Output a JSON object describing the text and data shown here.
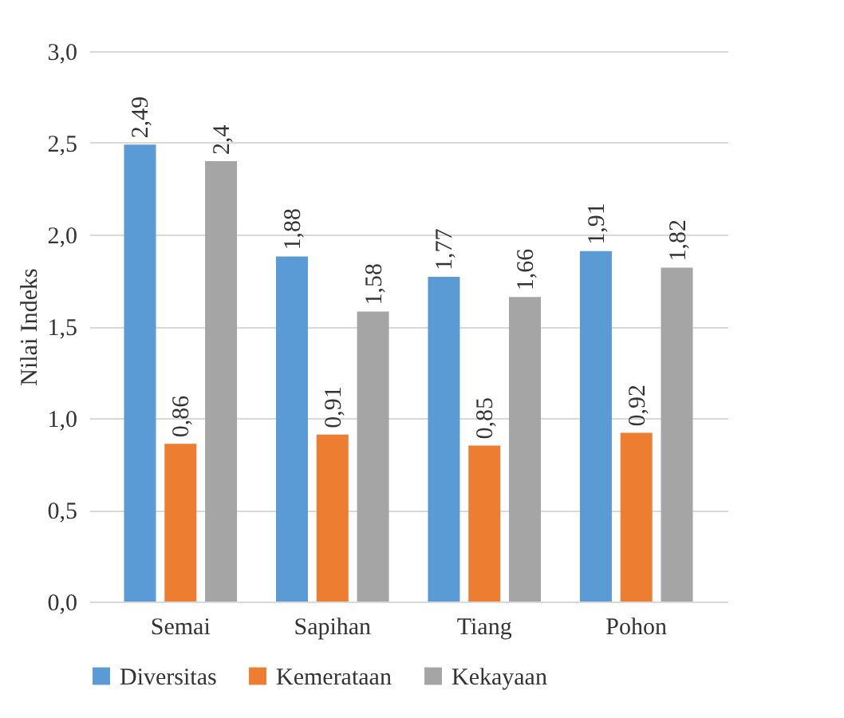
{
  "chart_data": {
    "type": "bar",
    "ylabel": "Nilai Indeks",
    "categories": [
      "Semai",
      "Sapihan",
      "Tiang",
      "Pohon"
    ],
    "series": [
      {
        "name": "Diversitas",
        "color": "#5b9bd5",
        "values": [
          2.49,
          1.88,
          1.77,
          1.91
        ],
        "value_labels": [
          "2,49",
          "1,88",
          "1,77",
          "1,91"
        ]
      },
      {
        "name": "Kemerataan",
        "color": "#ed7d31",
        "values": [
          0.86,
          0.91,
          0.85,
          0.92
        ],
        "value_labels": [
          "0,86",
          "0,91",
          "0,85",
          "0,92"
        ]
      },
      {
        "name": "Kekayaan",
        "color": "#a5a5a5",
        "values": [
          2.4,
          1.58,
          1.66,
          1.82
        ],
        "value_labels": [
          "2,4",
          "1,58",
          "1,66",
          "1,82"
        ]
      }
    ],
    "ylim": [
      0,
      3
    ],
    "yticks": [
      {
        "value": 0,
        "label": "0,0"
      },
      {
        "value": 0.5,
        "label": "0,5"
      },
      {
        "value": 1,
        "label": "1,0"
      },
      {
        "value": 1.5,
        "label": "1,5"
      },
      {
        "value": 2,
        "label": "2,0"
      },
      {
        "value": 2.5,
        "label": "2,5"
      },
      {
        "value": 3,
        "label": "3,0"
      }
    ],
    "grid": "y",
    "legend": "bottom"
  }
}
